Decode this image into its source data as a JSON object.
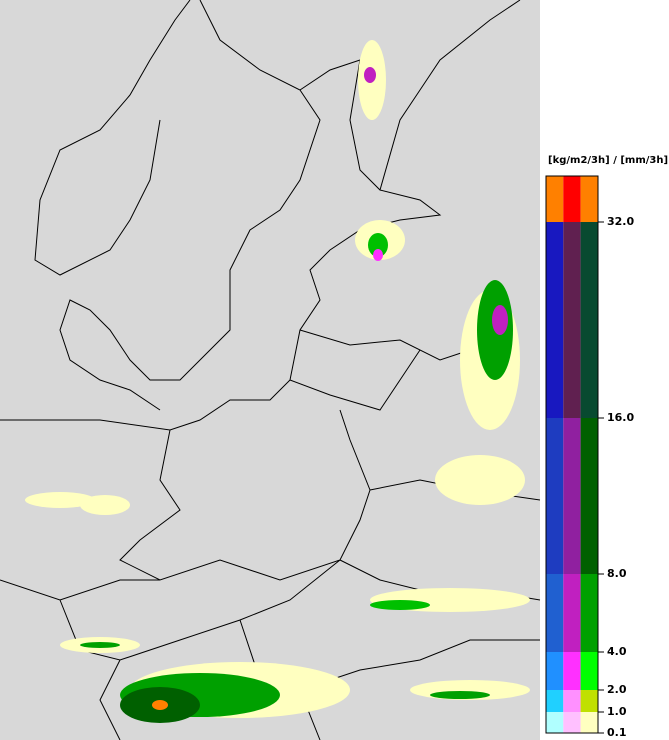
{
  "legend": {
    "unit": "[kg/m2/3h] / [mm/3h]",
    "levels": [
      "32.0",
      "16.0",
      "8.0",
      "4.0",
      "2.0",
      "1.0",
      "0.1"
    ]
  }
}
